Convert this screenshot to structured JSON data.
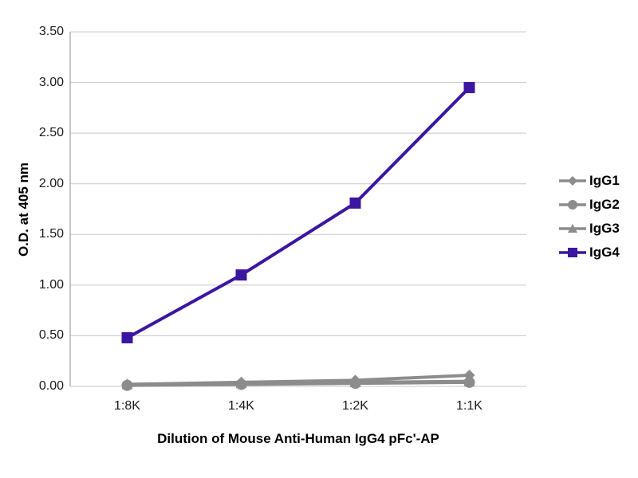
{
  "chart_data": {
    "type": "line",
    "title": "Dilution of Mouse Anti-Human IgG4 pFc'-AP",
    "xlabel": "",
    "ylabel": "O.D. at 405 nm",
    "x_labels": [
      "1:8K",
      "1:4K",
      "1:2K",
      "1:1K"
    ],
    "ylim": [
      0,
      3.5
    ],
    "ytick_labels": [
      "0.00",
      "0.50",
      "1.00",
      "1.50",
      "2.00",
      "2.50",
      "3.00",
      "3.50"
    ],
    "grid": "horizontal",
    "legend_position": "right",
    "series": [
      {
        "name": "IgG1",
        "marker": "diamond",
        "color": "#8c8c8c",
        "values": [
          0.02,
          0.04,
          0.06,
          0.11
        ]
      },
      {
        "name": "IgG2",
        "marker": "circle",
        "color": "#8c8c8c",
        "values": [
          0.01,
          0.02,
          0.03,
          0.04
        ]
      },
      {
        "name": "IgG3",
        "marker": "triangle",
        "color": "#8c8c8c",
        "values": [
          0.02,
          0.03,
          0.04,
          0.05
        ]
      },
      {
        "name": "IgG4",
        "marker": "square",
        "color": "#3b16a0",
        "values": [
          0.48,
          1.1,
          1.81,
          2.95
        ]
      }
    ]
  },
  "colors": {
    "grid": "#c9c9c9",
    "axis": "#b3b3b3",
    "text": "#1a1a1a"
  }
}
